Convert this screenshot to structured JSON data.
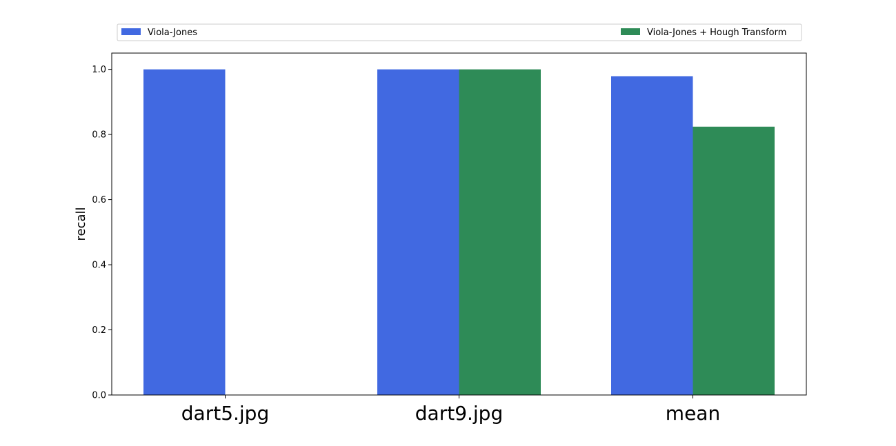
{
  "chart_data": {
    "type": "bar",
    "title": "",
    "xlabel": "",
    "ylabel": "recall",
    "categories": [
      "dart5.jpg",
      "dart9.jpg",
      "mean"
    ],
    "series": [
      {
        "name": "Viola-Jones",
        "color": "#4169e1",
        "values": [
          1.0,
          1.0,
          0.979
        ]
      },
      {
        "name": "Viola-Jones + Hough Transform",
        "color": "#2e8b57",
        "values": [
          0.0,
          1.0,
          0.824
        ]
      }
    ],
    "ylim": [
      0,
      1.05
    ],
    "yticks": [
      "0.0",
      "0.2",
      "0.4",
      "0.6",
      "0.8",
      "1.0"
    ],
    "grid": false,
    "legend_position": "top"
  }
}
